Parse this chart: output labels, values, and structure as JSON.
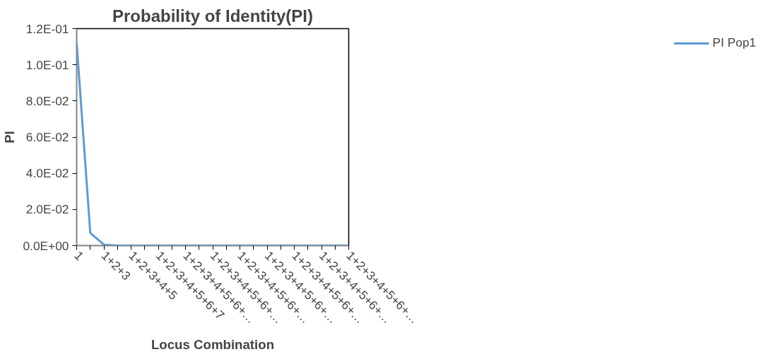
{
  "chart_data": {
    "type": "line",
    "title": "Probability of Identity(PI)",
    "xlabel": "Locus Combination",
    "ylabel": "PI",
    "categories": [
      "1",
      null,
      "1+2+3",
      null,
      "1+2+3+4+5",
      null,
      "1+2+3+4+5+6+7",
      null,
      "1+2+3+4+5+6+…",
      null,
      "1+2+3+4+5+6+…",
      null,
      "1+2+3+4+5+6+…",
      null,
      "1+2+3+4+5+6+…",
      null,
      "1+2+3+4+5+6+…",
      null,
      "1+2+3+4+5+6+…",
      null,
      "1+2+3+4+5+6+…"
    ],
    "series": [
      {
        "name": "PI Pop1",
        "color": "#5b9bd5",
        "values": [
          0.112,
          0.007,
          0.0005,
          0,
          0,
          0,
          0,
          0,
          0,
          0,
          0,
          0,
          0,
          0,
          0,
          0,
          0,
          0,
          0,
          0,
          0
        ]
      }
    ],
    "ylim": [
      0,
      0.12
    ],
    "yticks": [
      {
        "value": 0,
        "label": "0.0E+00"
      },
      {
        "value": 0.02,
        "label": "2.0E-02"
      },
      {
        "value": 0.04,
        "label": "4.0E-02"
      },
      {
        "value": 0.06,
        "label": "6.0E-02"
      },
      {
        "value": 0.08,
        "label": "8.0E-02"
      },
      {
        "value": 0.1,
        "label": "1.0E-01"
      },
      {
        "value": 0.12,
        "label": "1.2E-01"
      }
    ],
    "grid": false,
    "legend": "right",
    "marker": "none",
    "line_style": "solid"
  }
}
